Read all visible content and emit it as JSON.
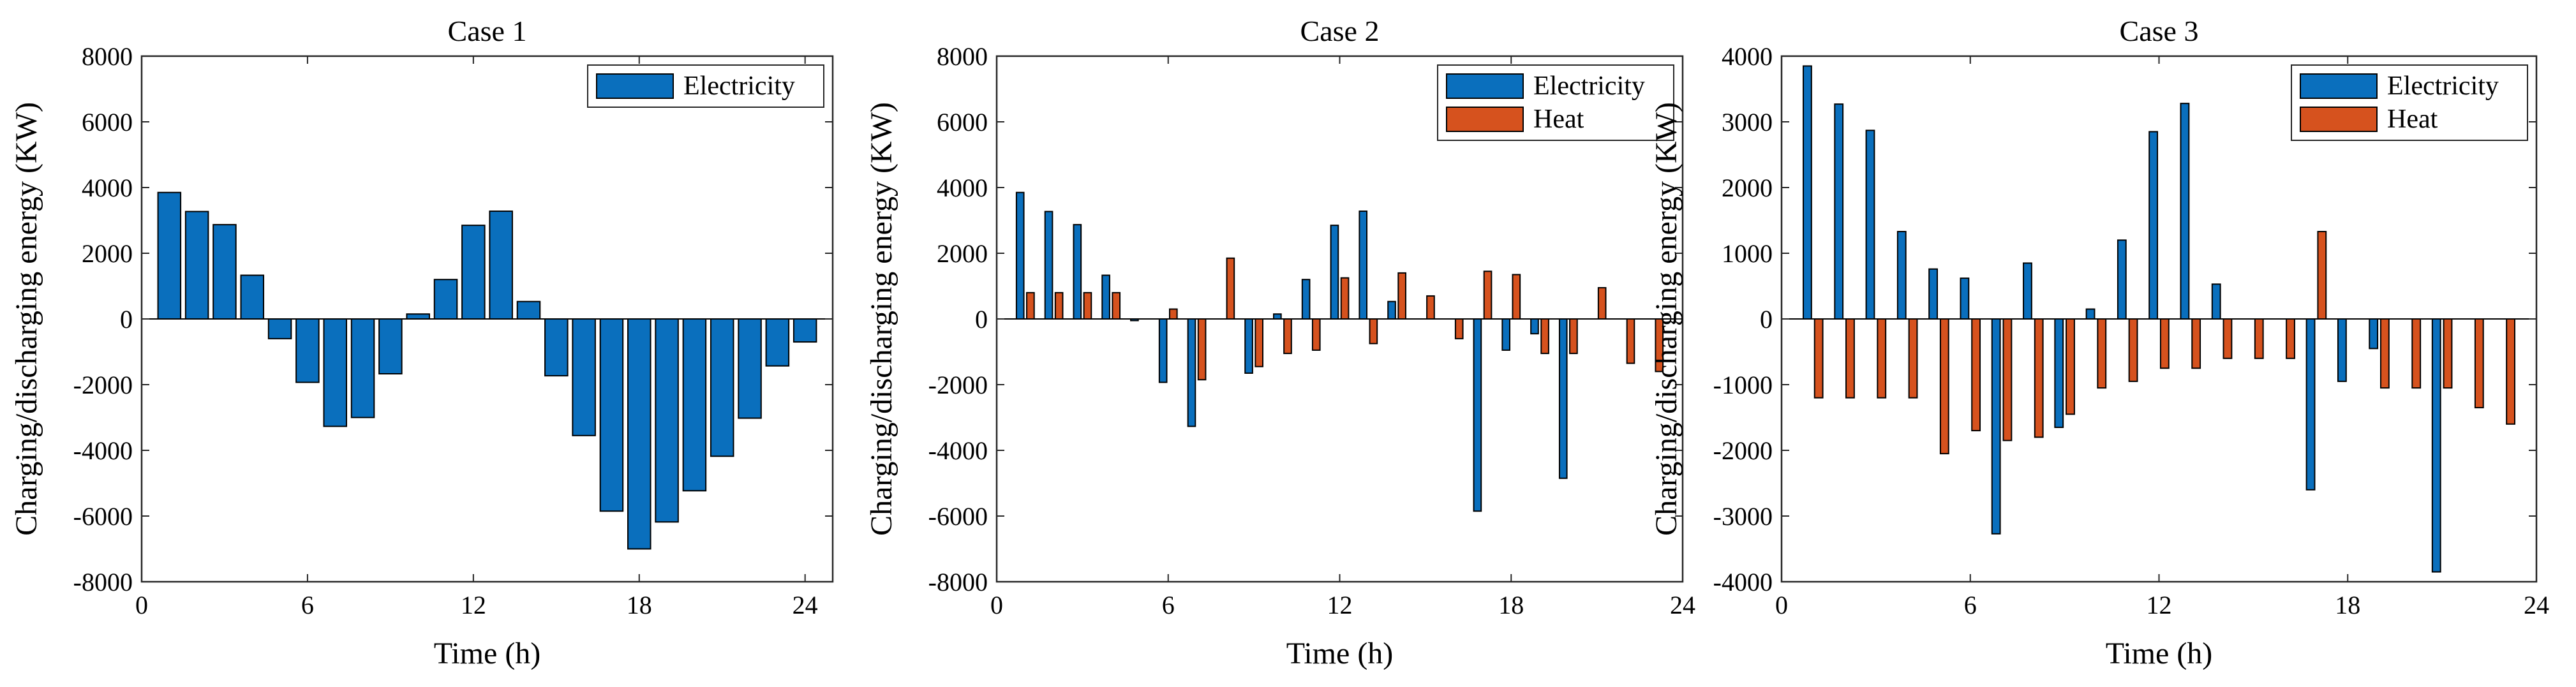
{
  "figure": {
    "colors": {
      "electricity": "#0a6fbd",
      "heat": "#d6521e",
      "axis": "#000000",
      "background": "#ffffff"
    }
  },
  "chart_data": [
    {
      "type": "bar",
      "title": "Case 1",
      "xlabel": "Time (h)",
      "ylabel": "Charging/discharging energy (KW)",
      "xlim": [
        0,
        25
      ],
      "ylim": [
        -8000,
        8000
      ],
      "xticks": [
        0,
        6,
        12,
        18,
        24
      ],
      "yticks": [
        -8000,
        -6000,
        -4000,
        -2000,
        0,
        2000,
        4000,
        6000,
        8000
      ],
      "x": [
        1,
        2,
        3,
        4,
        5,
        6,
        7,
        8,
        9,
        10,
        11,
        12,
        13,
        14,
        15,
        16,
        17,
        18,
        19,
        20,
        21,
        22,
        23,
        24
      ],
      "legend_position": "top-right",
      "series": [
        {
          "name": "Electricity",
          "color": "#0a6fbd",
          "values": [
            3850,
            3270,
            2870,
            1330,
            -600,
            -1930,
            -3270,
            -3000,
            -1670,
            150,
            1200,
            2850,
            3280,
            530,
            -1730,
            -3550,
            -5850,
            -7000,
            -6180,
            -5230,
            -4180,
            -3020,
            -1430,
            -700
          ]
        }
      ]
    },
    {
      "type": "bar",
      "title": "Case 2",
      "xlabel": "Time (h)",
      "ylabel": "Charging/discharging energy (KW)",
      "xlim": [
        0,
        24
      ],
      "ylim": [
        -8000,
        8000
      ],
      "xticks": [
        0,
        6,
        12,
        18,
        24
      ],
      "yticks": [
        -8000,
        -6000,
        -4000,
        -2000,
        0,
        2000,
        4000,
        6000,
        8000
      ],
      "x": [
        1,
        2,
        3,
        4,
        5,
        6,
        7,
        8,
        9,
        10,
        11,
        12,
        13,
        14,
        15,
        16,
        17,
        18,
        19,
        20,
        21,
        22,
        23
      ],
      "legend_position": "top-right",
      "series": [
        {
          "name": "Electricity",
          "color": "#0a6fbd",
          "values": [
            3850,
            3270,
            2870,
            1330,
            -50,
            -1930,
            -3270,
            0,
            -1650,
            150,
            1200,
            2850,
            3280,
            530,
            0,
            0,
            -5850,
            -950,
            -450,
            -4850,
            0,
            0,
            0
          ]
        },
        {
          "name": "Heat",
          "color": "#d6521e",
          "values": [
            800,
            800,
            800,
            800,
            0,
            300,
            -1850,
            1850,
            -1450,
            -1050,
            -950,
            1250,
            -750,
            1400,
            700,
            -600,
            1450,
            1350,
            -1050,
            -1050,
            950,
            -1350,
            -1600
          ]
        }
      ]
    },
    {
      "type": "bar",
      "title": "Case 3",
      "xlabel": "Time (h)",
      "ylabel": "Charging/discharging energy (KW)",
      "xlim": [
        0,
        24
      ],
      "ylim": [
        -4000,
        4000
      ],
      "xticks": [
        0,
        6,
        12,
        18,
        24
      ],
      "yticks": [
        -4000,
        -3000,
        -2000,
        -1000,
        0,
        1000,
        2000,
        3000,
        4000
      ],
      "x": [
        1,
        2,
        3,
        4,
        5,
        6,
        7,
        8,
        9,
        10,
        11,
        12,
        13,
        14,
        15,
        16,
        17,
        18,
        19,
        20,
        21,
        22,
        23
      ],
      "legend_position": "top-right",
      "series": [
        {
          "name": "Electricity",
          "color": "#0a6fbd",
          "values": [
            3850,
            3270,
            2870,
            1330,
            760,
            620,
            -3270,
            850,
            -1650,
            150,
            1200,
            2850,
            3280,
            530,
            0,
            0,
            -2600,
            -950,
            -450,
            0,
            -3850,
            0,
            0
          ]
        },
        {
          "name": "Heat",
          "color": "#d6521e",
          "values": [
            -1200,
            -1200,
            -1200,
            -1200,
            -2050,
            -1700,
            -1850,
            -1800,
            -1450,
            -1050,
            -950,
            -750,
            -750,
            -600,
            -600,
            -600,
            1330,
            0,
            -1050,
            -1050,
            -1050,
            -1350,
            -1600
          ]
        }
      ]
    }
  ]
}
